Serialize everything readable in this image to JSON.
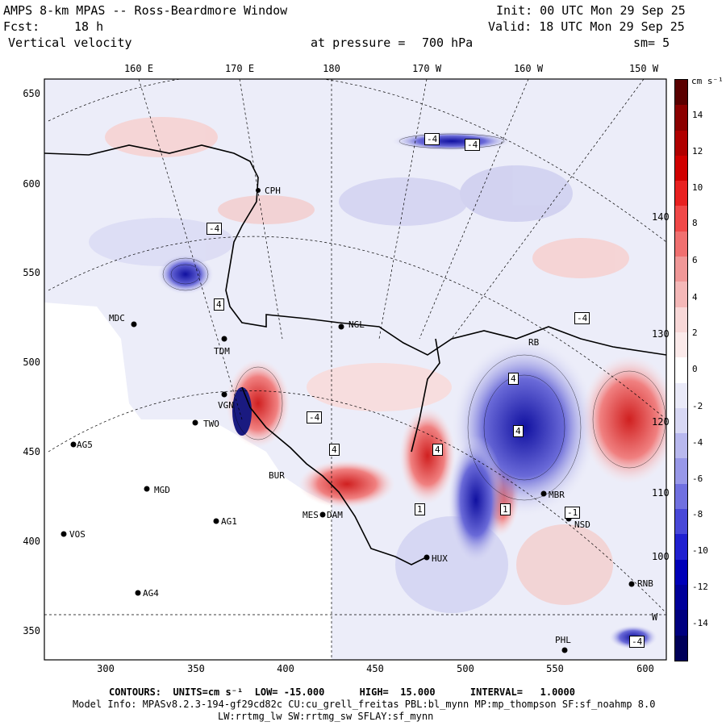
{
  "header": {
    "title": "AMPS 8-km MPAS -- Ross-Beardmore Window",
    "fcst_label": "Fcst:",
    "fcst_value": "18 h",
    "field": "Vertical velocity",
    "init": "Init: 00 UTC Mon 29 Sep 25",
    "valid": "Valid: 18 UTC Mon 29 Sep 25",
    "pressure_label": "at pressure =",
    "pressure_value": "700 hPa",
    "smooth": "sm= 5"
  },
  "axes": {
    "top_longitudes": [
      "160 E",
      "170 E",
      "180",
      "170 W",
      "160 W",
      "150 W"
    ],
    "x_ticks": [
      "300",
      "350",
      "400",
      "450",
      "500",
      "550",
      "600"
    ],
    "y_ticks": [
      "650",
      "600",
      "550",
      "500",
      "450",
      "400",
      "350"
    ]
  },
  "map_labels": {
    "right_longitudes": [
      "140 W",
      "130 W",
      "120 W",
      "110 W",
      "100 W",
      "W"
    ],
    "contour_boxes": [
      "-4",
      "-4",
      "-4",
      "-4",
      "-4",
      "4",
      "4",
      "4",
      "-4",
      "-1",
      "1",
      "4",
      "1",
      "4"
    ]
  },
  "stations": [
    {
      "name": "CPH"
    },
    {
      "name": "MDC"
    },
    {
      "name": "TDM"
    },
    {
      "name": "NGL"
    },
    {
      "name": "VGN"
    },
    {
      "name": "TWO"
    },
    {
      "name": "AG5"
    },
    {
      "name": "BUR"
    },
    {
      "name": "MGD"
    },
    {
      "name": "AG1"
    },
    {
      "name": "VOS"
    },
    {
      "name": "AG4"
    },
    {
      "name": "DAM"
    },
    {
      "name": "MES"
    },
    {
      "name": "HUX"
    },
    {
      "name": "MBR"
    },
    {
      "name": "NSD"
    },
    {
      "name": "RNB"
    },
    {
      "name": "PHL"
    },
    {
      "name": "RB"
    }
  ],
  "colorbar": {
    "units": "cm s⁻¹",
    "labels": [
      "14",
      "12",
      "10",
      "8",
      "6",
      "4",
      "2",
      "0",
      "-2",
      "-4",
      "-6",
      "-8",
      "-10",
      "-12",
      "-14"
    ],
    "colors": [
      "#5a0000",
      "#8b0000",
      "#b00000",
      "#d00000",
      "#e82020",
      "#f04848",
      "#f07070",
      "#f09898",
      "#f4b8b8",
      "#f8d8d8",
      "#fbeaea",
      "#ffffff",
      "#eaeaf8",
      "#d8d8f4",
      "#b8b8ee",
      "#9898e8",
      "#7070e0",
      "#4848d8",
      "#2020d0",
      "#0000b8",
      "#00009a",
      "#000080",
      "#00005a"
    ]
  },
  "footer": {
    "contours": "CONTOURS:  UNITS=cm s⁻¹  LOW= -15.000      HIGH=  15.000      INTERVAL=   1.0000",
    "model_info": "Model Info: MPASv8.2.3-194-gf29cd82c CU:cu_grell_freitas PBL:bl_mynn MP:mp_thompson SF:sf_noahmp 8.0",
    "physics": "LW:rrtmg_lw SW:rrtmg_sw SFLAY:sf_mynn"
  }
}
